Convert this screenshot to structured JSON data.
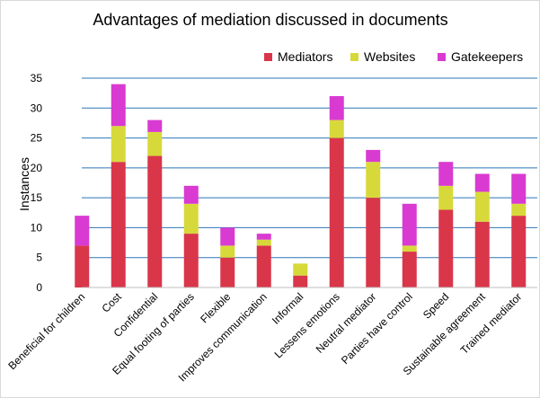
{
  "chart_data": {
    "type": "bar",
    "stacked": true,
    "title": "Advantages of mediation discussed in documents",
    "xlabel": "",
    "ylabel": "Instances",
    "ylim": [
      0,
      35
    ],
    "yticks": [
      0,
      5,
      10,
      15,
      20,
      25,
      30,
      35
    ],
    "grid": true,
    "legend_position": "top-right",
    "categories": [
      "Beneficial for children",
      "Cost",
      "Confidential",
      "Equal footing of parties",
      "Flexible",
      "Improves communication",
      "Informal",
      "Lessens emotions",
      "Neutral mediator",
      "Parties have control",
      "Speed",
      "Sustainable agreement",
      "Trained mediator"
    ],
    "series": [
      {
        "name": "Mediators",
        "color": "#d9364a",
        "values": [
          7,
          21,
          22,
          9,
          5,
          7,
          2,
          25,
          15,
          6,
          13,
          11,
          12
        ]
      },
      {
        "name": "Websites",
        "color": "#d7d93a",
        "values": [
          0,
          6,
          4,
          5,
          2,
          1,
          2,
          3,
          6,
          1,
          4,
          5,
          2
        ]
      },
      {
        "name": "Gatekeepers",
        "color": "#d93ad1",
        "values": [
          5,
          7,
          2,
          3,
          3,
          1,
          0,
          4,
          2,
          7,
          4,
          3,
          5
        ]
      }
    ]
  }
}
